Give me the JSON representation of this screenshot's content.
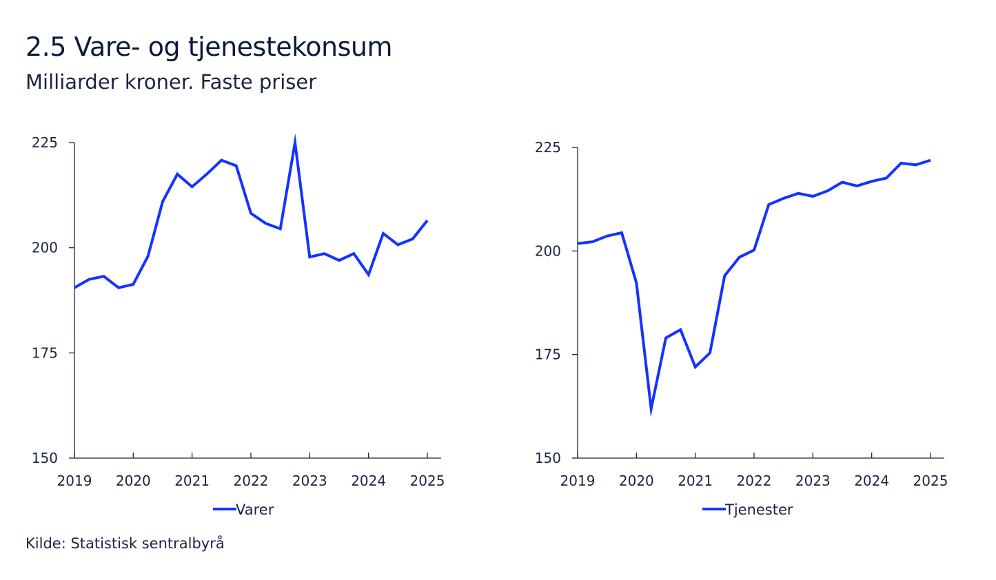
{
  "title": "2.5 Vare- og tjenestekonsum",
  "subtitle": "Milliarder kroner. Faste priser",
  "source": "Kilde: Statistisk sentralbyrå",
  "colors": {
    "line": "#1433ff",
    "axis": "#1a2540"
  },
  "chart_data": [
    {
      "type": "line",
      "ylim": [
        150,
        225
      ],
      "xlim": [
        2019.0,
        2025.0
      ],
      "yticks": [
        "150",
        "175",
        "200",
        "225"
      ],
      "xticks": [
        "2019",
        "2020",
        "2021",
        "2022",
        "2023",
        "2024",
        "2025"
      ],
      "legend_position": "bottom-center",
      "series": [
        {
          "name": "Varer",
          "x": [
            2019.0,
            2019.25,
            2019.5,
            2019.75,
            2020.0,
            2020.25,
            2020.5,
            2020.75,
            2021.0,
            2021.25,
            2021.5,
            2021.75,
            2022.0,
            2022.25,
            2022.5,
            2022.75,
            2023.0,
            2023.25,
            2023.5,
            2023.75,
            2024.0,
            2024.25,
            2024.5,
            2024.75,
            2025.0
          ],
          "values": [
            190.5,
            192.5,
            193.2,
            190.5,
            191.3,
            198.0,
            211.0,
            217.5,
            214.5,
            217.5,
            220.8,
            219.5,
            208.2,
            205.8,
            204.5,
            225.0,
            197.8,
            198.6,
            197.0,
            198.6,
            193.6,
            203.4,
            200.7,
            202.1,
            206.5
          ]
        }
      ]
    },
    {
      "type": "line",
      "ylim": [
        150,
        225
      ],
      "xlim": [
        2019.0,
        2025.0
      ],
      "yticks": [
        "150",
        "175",
        "200",
        "225"
      ],
      "xticks": [
        "2019",
        "2020",
        "2021",
        "2022",
        "2023",
        "2024",
        "2025"
      ],
      "legend_position": "bottom-center",
      "series": [
        {
          "name": "Tjenester",
          "x": [
            2019.0,
            2019.25,
            2019.5,
            2019.75,
            2020.0,
            2020.25,
            2020.5,
            2020.75,
            2021.0,
            2021.25,
            2021.5,
            2021.75,
            2022.0,
            2022.25,
            2022.5,
            2022.75,
            2023.0,
            2023.25,
            2023.5,
            2023.75,
            2024.0,
            2024.25,
            2024.5,
            2024.75,
            2025.0
          ],
          "values": [
            201.8,
            202.2,
            203.6,
            204.4,
            192.3,
            161.9,
            179.0,
            181.0,
            172.0,
            175.4,
            194.0,
            198.5,
            200.2,
            211.2,
            212.7,
            213.9,
            213.2,
            214.5,
            216.6,
            215.7,
            216.8,
            217.6,
            221.2,
            220.8,
            221.9
          ]
        }
      ]
    }
  ]
}
